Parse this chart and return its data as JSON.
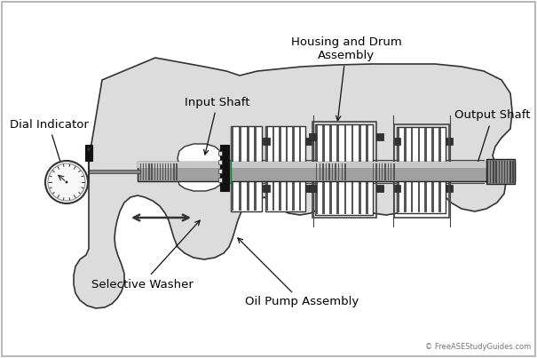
{
  "background_color": "#ffffff",
  "body_fill": "#dcdcdc",
  "body_stroke": "#333333",
  "shaft_fill": "#999999",
  "shaft_stroke": "#222222",
  "green_fill": "#3cb371",
  "dark_fill": "#222222",
  "white_fill": "#ffffff",
  "gear_fill": "#ffffff",
  "gear_stroke": "#333333",
  "stripe_fill": "#555555",
  "labels": {
    "dial_indicator": "Dial Indicator",
    "input_shaft": "Input Shaft",
    "housing_drum": "Housing and Drum\nAssembly",
    "output_shaft": "Output Shaft",
    "selective_washer": "Selective Washer",
    "oil_pump": "Oil Pump Assembly",
    "copyright": "© FreeASEStudyGuides.com"
  },
  "font_size": 9.5
}
